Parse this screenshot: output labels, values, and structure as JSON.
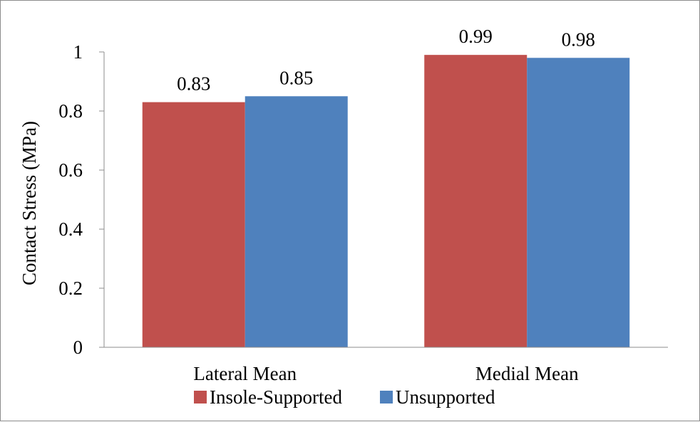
{
  "chart_data": {
    "type": "bar",
    "title": "",
    "xlabel": "",
    "ylabel": "Contact Stress (MPa)",
    "ylim": [
      0,
      1
    ],
    "yticks": [
      0,
      0.2,
      0.4,
      0.6,
      0.8,
      1
    ],
    "ytick_labels": [
      "0",
      "0.2",
      "0.4",
      "0.6",
      "0.8",
      "1"
    ],
    "categories": [
      "Lateral Mean",
      "Medial Mean"
    ],
    "series": [
      {
        "name": "Insole-Supported",
        "color": "#c0504d",
        "values": [
          0.83,
          0.99
        ],
        "labels": [
          "0.83",
          "0.99"
        ]
      },
      {
        "name": "Unsupported",
        "color": "#4f81bd",
        "values": [
          0.85,
          0.98
        ],
        "labels": [
          "0.85",
          "0.98"
        ]
      }
    ],
    "grid": false,
    "legend_position": "bottom"
  }
}
